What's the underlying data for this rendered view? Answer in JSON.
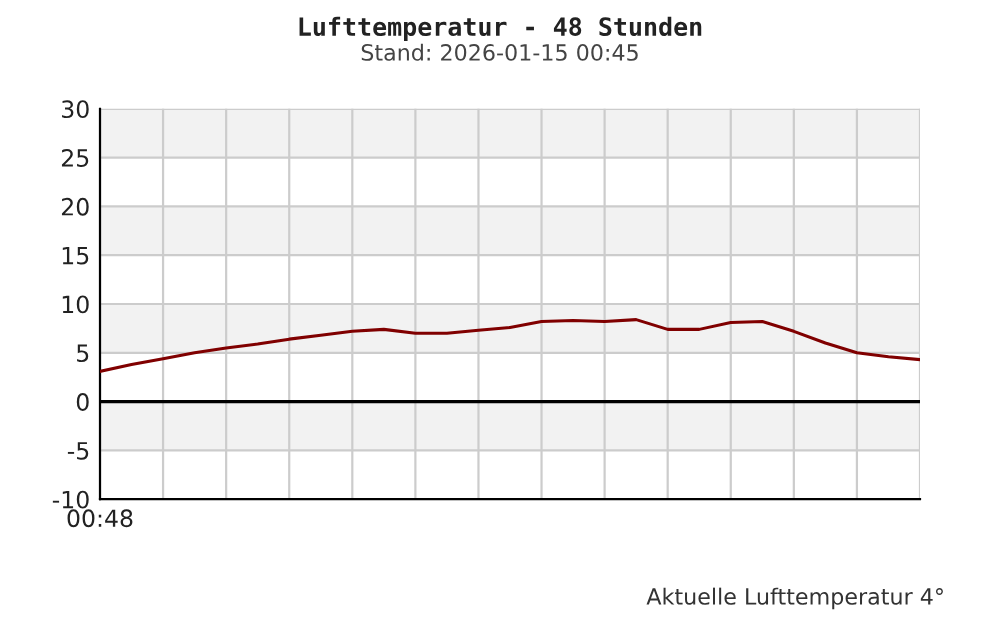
{
  "chart_data": {
    "type": "line",
    "title": "Lufttemperatur - 48 Stunden",
    "subtitle": "Stand: 2026-01-15 00:45",
    "annotations": [
      "Aktuelle Lufttemperatur 4°"
    ],
    "categories": [
      "00:48",
      null,
      null,
      null,
      null,
      null,
      null,
      null,
      null,
      null,
      null,
      null,
      null,
      null,
      null,
      null,
      null,
      null,
      null,
      null,
      null,
      null,
      null,
      null,
      null,
      null,
      null
    ],
    "series": [
      {
        "color": "#800000",
        "values": [
          3.1,
          3.8,
          4.4,
          5.0,
          5.5,
          5.9,
          6.4,
          6.8,
          7.2,
          7.4,
          7.0,
          7.0,
          7.3,
          7.6,
          8.2,
          8.3,
          8.2,
          8.4,
          7.4,
          7.4,
          8.1,
          8.2,
          7.2,
          6.0,
          5.0,
          4.6,
          4.3
        ]
      }
    ],
    "ylim": [
      -10,
      30
    ],
    "yticks": [
      -10,
      -5,
      0,
      5,
      10,
      15,
      20,
      25,
      30
    ],
    "bands": [
      {
        "axis": "y",
        "from": 25,
        "to": 30,
        "color": "#f2f2f2"
      },
      {
        "axis": "y",
        "from": 15,
        "to": 20,
        "color": "#f2f2f2"
      },
      {
        "axis": "y",
        "from": 5,
        "to": 10,
        "color": "#f2f2f2"
      },
      {
        "axis": "y",
        "from": -5,
        "to": 0,
        "color": "#f2f2f2"
      }
    ],
    "ref_lines": [
      {
        "axis": "y",
        "value": 0,
        "color": "#000000"
      }
    ],
    "grid": true,
    "legend": false,
    "marker": "none",
    "line_style": "solid"
  }
}
